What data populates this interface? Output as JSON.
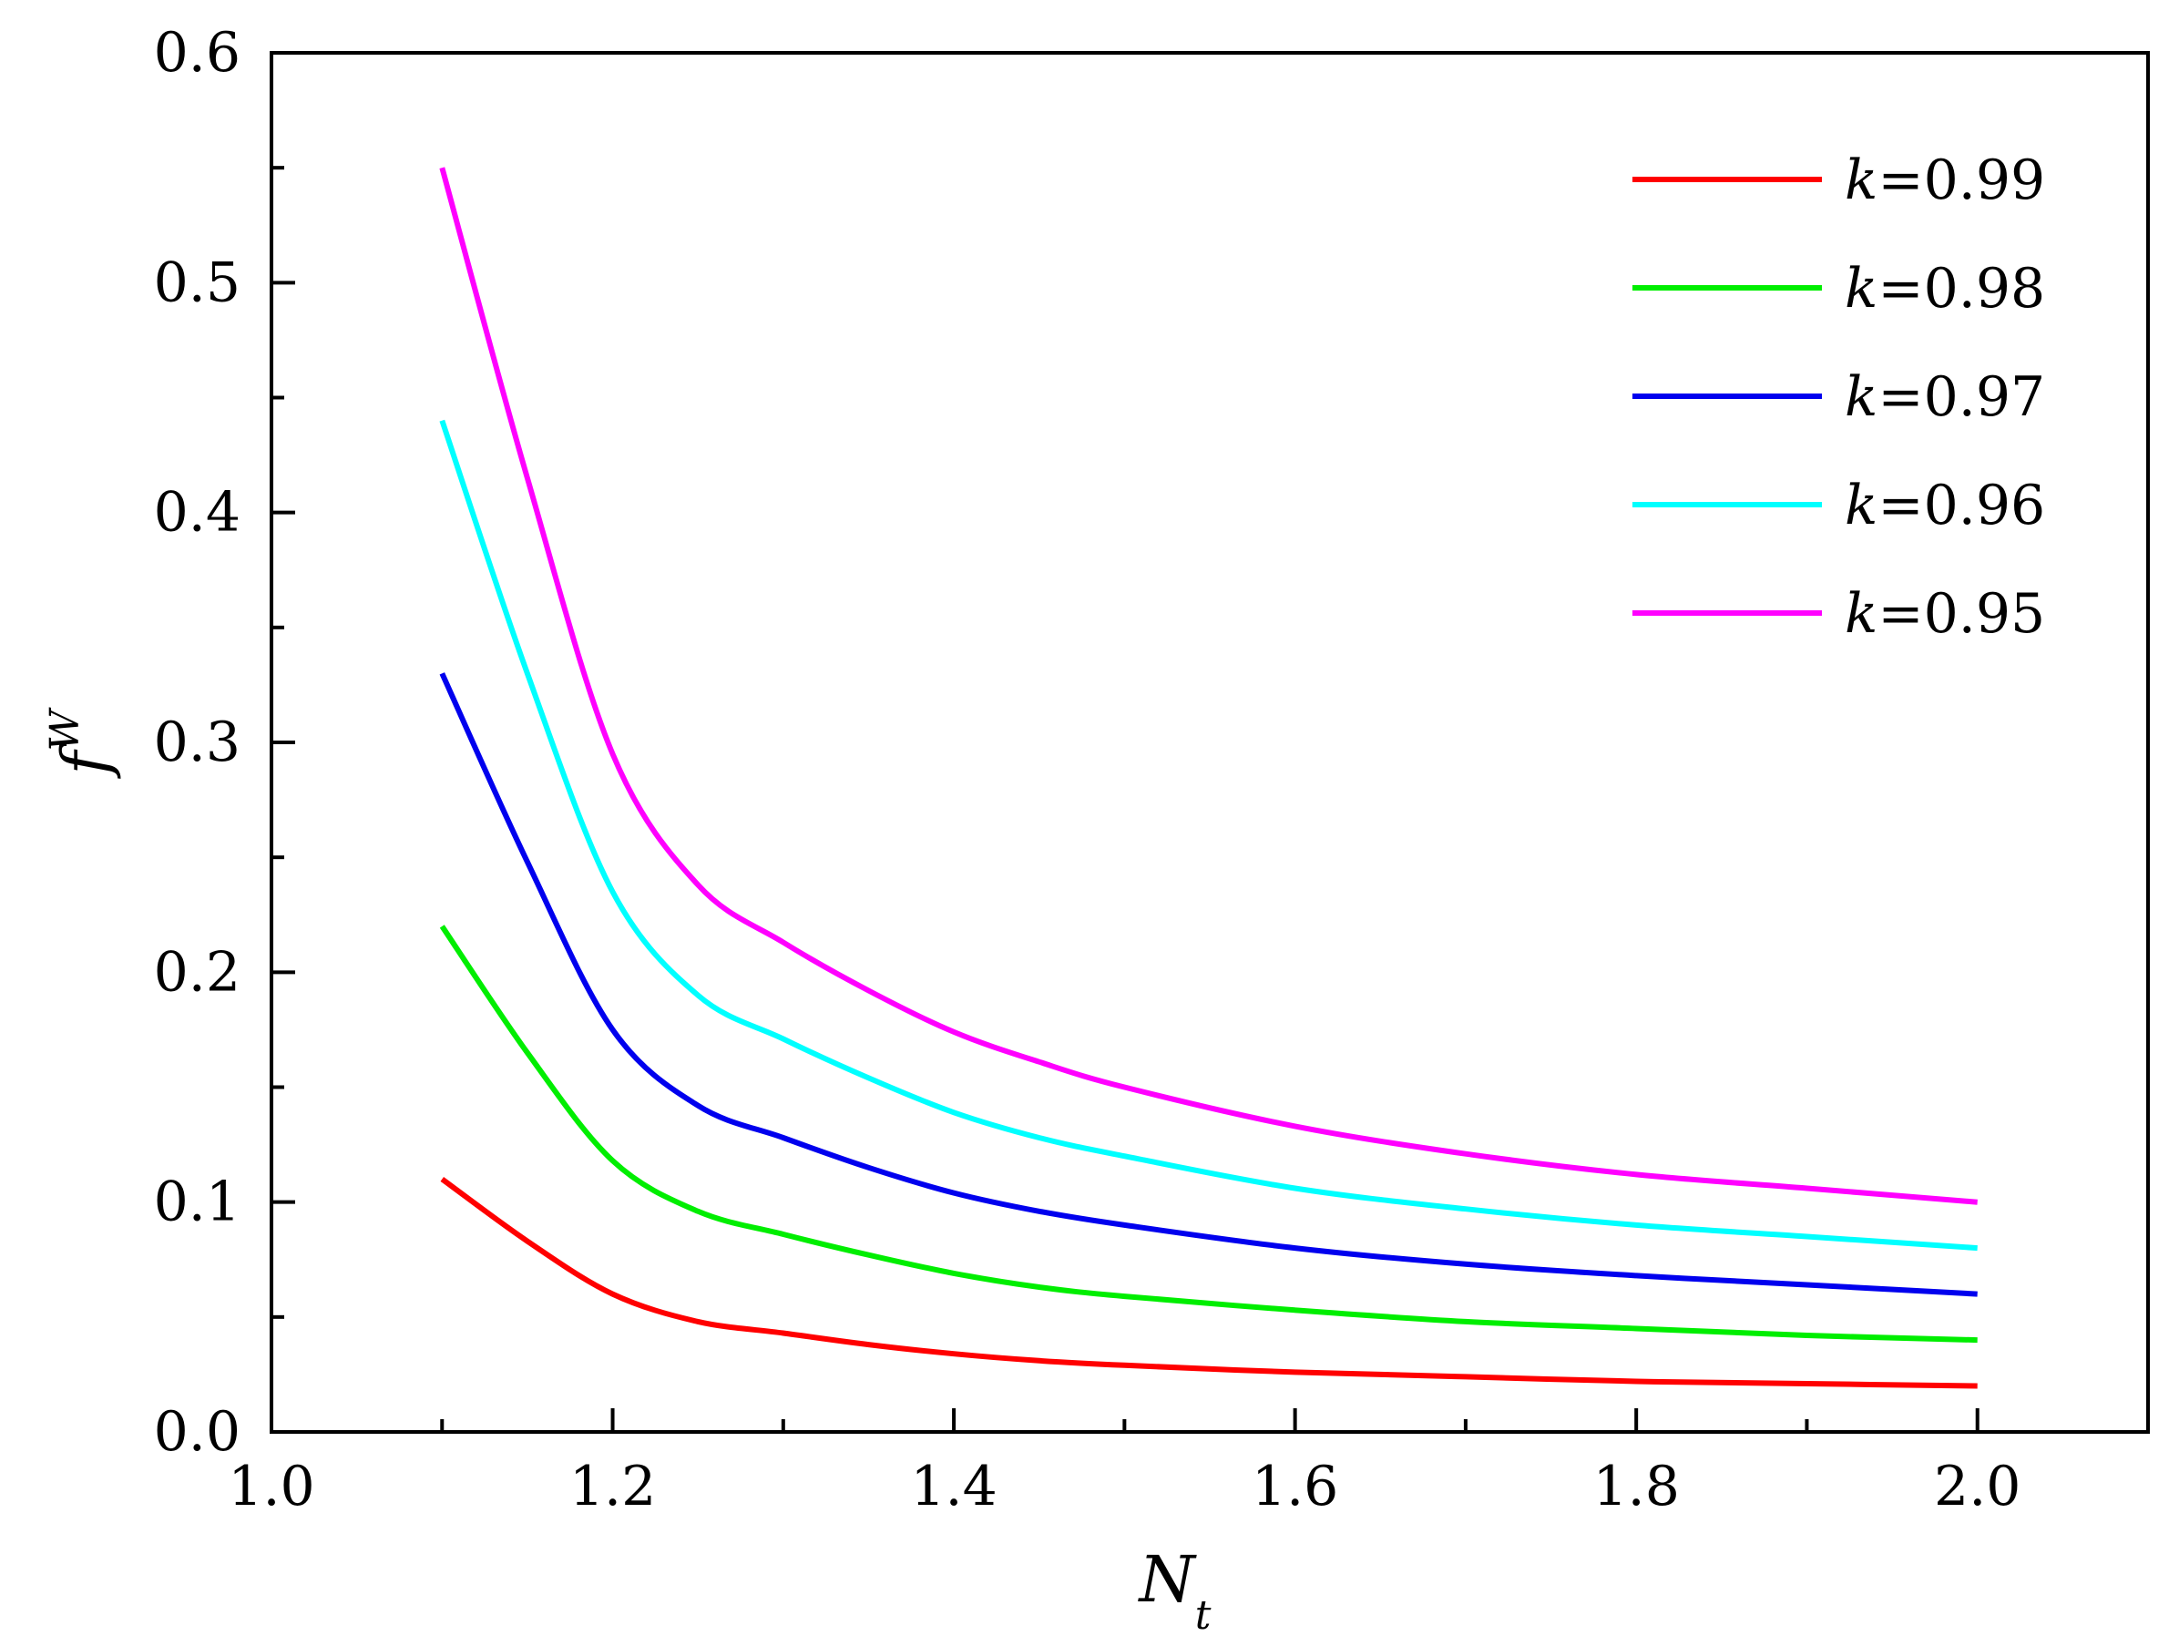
{
  "chart_data": {
    "type": "line",
    "xlabel": {
      "main": "N",
      "sub": "t"
    },
    "ylabel": {
      "main": "f",
      "sup": "W"
    },
    "xlim": [
      1.0,
      2.1
    ],
    "ylim": [
      0.0,
      0.6
    ],
    "x_ticks": [
      "1.0",
      "1.2",
      "1.4",
      "1.6",
      "1.8",
      "2.0"
    ],
    "y_ticks": [
      "0.0",
      "0.1",
      "0.2",
      "0.3",
      "0.4",
      "0.5",
      "0.6"
    ],
    "grid": false,
    "legend_position": "top-right",
    "x": [
      1.1,
      1.15,
      1.2,
      1.25,
      1.3,
      1.35,
      1.4,
      1.45,
      1.5,
      1.6,
      1.7,
      1.8,
      1.9,
      2.0
    ],
    "series": [
      {
        "name": "k=0.99",
        "var": "k",
        "value": "=0.99",
        "color": "#ff0000",
        "values": [
          0.11,
          0.083,
          0.06,
          0.048,
          0.043,
          0.038,
          0.034,
          0.031,
          0.029,
          0.026,
          0.024,
          0.022,
          0.021,
          0.02
        ]
      },
      {
        "name": "k=0.98",
        "var": "k",
        "value": "=0.98",
        "color": "#00ee00",
        "values": [
          0.22,
          0.165,
          0.118,
          0.096,
          0.086,
          0.077,
          0.069,
          0.063,
          0.059,
          0.053,
          0.048,
          0.045,
          0.042,
          0.04
        ]
      },
      {
        "name": "k=0.97",
        "var": "k",
        "value": "=0.97",
        "color": "#0000ee",
        "values": [
          0.33,
          0.248,
          0.175,
          0.142,
          0.128,
          0.115,
          0.104,
          0.096,
          0.09,
          0.08,
          0.073,
          0.068,
          0.064,
          0.06
        ]
      },
      {
        "name": "k=0.96",
        "var": "k",
        "value": "=0.96",
        "color": "#00ffff",
        "values": [
          0.44,
          0.33,
          0.235,
          0.19,
          0.171,
          0.154,
          0.139,
          0.128,
          0.12,
          0.106,
          0.097,
          0.09,
          0.085,
          0.08
        ]
      },
      {
        "name": "k=0.95",
        "var": "k",
        "value": "=0.95",
        "color": "#ff00ff",
        "values": [
          0.55,
          0.415,
          0.295,
          0.238,
          0.213,
          0.192,
          0.174,
          0.161,
          0.15,
          0.133,
          0.121,
          0.112,
          0.106,
          0.1
        ]
      }
    ]
  }
}
